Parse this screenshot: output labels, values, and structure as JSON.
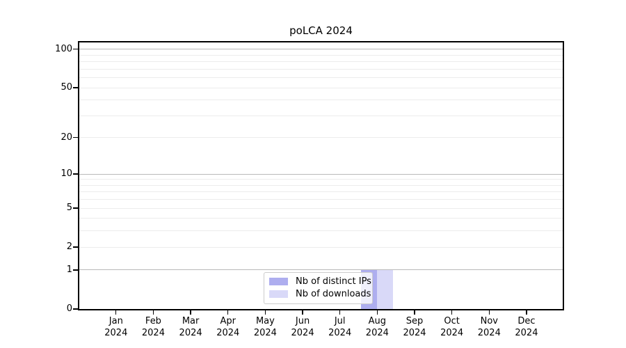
{
  "chart_data": {
    "type": "bar",
    "title": "poLCA 2024",
    "x_months": [
      "Jan",
      "Feb",
      "Mar",
      "Apr",
      "May",
      "Jun",
      "Jul",
      "Aug",
      "Sep",
      "Oct",
      "Nov",
      "Dec"
    ],
    "x_year": "2024",
    "series": [
      {
        "name": "Nb of distinct IPs",
        "color": "#aeaeef",
        "values": [
          0,
          0,
          0,
          0,
          0,
          0,
          0,
          1,
          0,
          0,
          0,
          0
        ]
      },
      {
        "name": "Nb of downloads",
        "color": "#d9d9f8",
        "values": [
          0,
          0,
          0,
          0,
          0,
          0,
          0,
          1,
          0,
          0,
          0,
          0
        ]
      }
    ],
    "y_scale": "log1p",
    "y_ticks": [
      0,
      1,
      2,
      5,
      10,
      20,
      50,
      100
    ],
    "y_major_gridlines": [
      1,
      10,
      100
    ],
    "y_minor_gridlines": [
      2,
      3,
      4,
      5,
      6,
      7,
      8,
      9,
      20,
      30,
      40,
      50,
      60,
      70,
      80,
      90
    ],
    "ylim": [
      0,
      113
    ],
    "grid": "horizontal",
    "legend_position": "bottom-center"
  },
  "colors": {
    "major_grid": "#b9b9b9",
    "minor_grid": "#ececec",
    "spine": "#000000",
    "text": "#000000",
    "legend_border": "#cccccc"
  }
}
